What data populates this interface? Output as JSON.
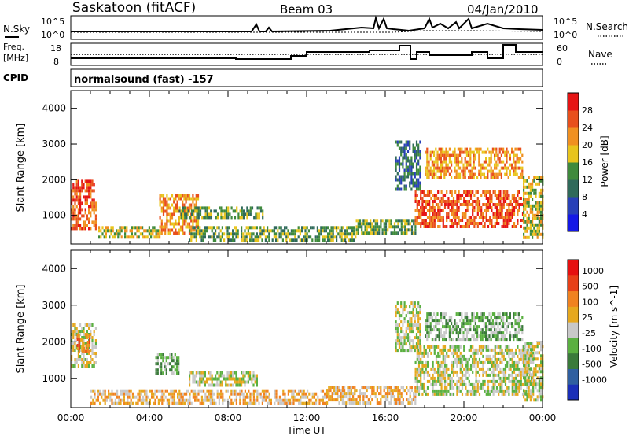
{
  "header": {
    "station": "Saskatoon (fitACF)",
    "beam": "Beam 03",
    "date": "04/Jan/2010"
  },
  "nsky_panel": {
    "label": "N.Sky",
    "yticks": [
      "10^5",
      "10^0"
    ],
    "right_label": "N.Search",
    "right_yticks": [
      "10^5",
      "10^0"
    ]
  },
  "freq_panel": {
    "label_line1": "Freq.",
    "label_line2": "[MHz]",
    "yticks": [
      "18",
      "8"
    ],
    "right_label": "Nave",
    "right_yticks": [
      "60",
      "0"
    ]
  },
  "cpid_panel": {
    "label": "CPID",
    "mode": "normalsound (fast) -157"
  },
  "colors": {
    "power_scale": [
      "#1418e6",
      "#2840b8",
      "#2f6a5a",
      "#3f8a3c",
      "#e8c41c",
      "#f09020",
      "#e8501c",
      "#e61414"
    ],
    "velocity_scale": [
      "#1a2fb8",
      "#2f5fa0",
      "#3a7a3a",
      "#5ab040",
      "#c8c8c8",
      "#e6a81e",
      "#f08220",
      "#e84018",
      "#e61010"
    ]
  },
  "chart_data": [
    {
      "type": "heatmap",
      "title": "Power",
      "ylabel": "Slant Range [km]",
      "ylim": [
        200,
        4500
      ],
      "yticks": [
        "1000",
        "2000",
        "3000",
        "4000"
      ],
      "xticks": [
        "00:00",
        "04:00",
        "08:00",
        "12:00",
        "16:00",
        "20:00",
        "00:00"
      ],
      "colorbar": {
        "label": "Power [dB]",
        "ticks": [
          "28",
          "24",
          "20",
          "16",
          "12",
          "8",
          "4"
        ]
      },
      "regions": [
        {
          "t0": 0.0,
          "t1": 1.3,
          "r0": 600,
          "r1": 2000,
          "level": 6
        },
        {
          "t0": 1.4,
          "t1": 4.5,
          "r0": 350,
          "r1": 700,
          "level": 4
        },
        {
          "t0": 4.5,
          "t1": 6.5,
          "r0": 500,
          "r1": 1600,
          "level": 5
        },
        {
          "t0": 5.5,
          "t1": 9.8,
          "r0": 900,
          "r1": 1250,
          "level": 3
        },
        {
          "t0": 6.0,
          "t1": 14.5,
          "r0": 300,
          "r1": 700,
          "level": 3
        },
        {
          "t0": 14.5,
          "t1": 17.5,
          "r0": 500,
          "r1": 900,
          "level": 3
        },
        {
          "t0": 16.5,
          "t1": 17.8,
          "r0": 1700,
          "r1": 3100,
          "level": 2
        },
        {
          "t0": 17.5,
          "t1": 23.0,
          "r0": 700,
          "r1": 1700,
          "level": 6
        },
        {
          "t0": 18.0,
          "t1": 23.0,
          "r0": 2100,
          "r1": 2900,
          "level": 5
        },
        {
          "t0": 23.0,
          "t1": 24.0,
          "r0": 400,
          "r1": 2100,
          "level": 4
        }
      ]
    },
    {
      "type": "heatmap",
      "title": "Velocity",
      "ylabel": "Slant Range [km]",
      "ylim": [
        200,
        4500
      ],
      "yticks": [
        "1000",
        "2000",
        "3000",
        "4000"
      ],
      "xticks": [
        "00:00",
        "04:00",
        "08:00",
        "12:00",
        "16:00",
        "20:00",
        "00:00"
      ],
      "xlabel": "Time UT",
      "colorbar": {
        "label": "Velocity [m s^-1]",
        "ticks": [
          "1000",
          "500",
          "100",
          "25",
          "-25",
          "-100",
          "-500",
          "-1000"
        ]
      },
      "regions": [
        {
          "t0": 0.0,
          "t1": 1.3,
          "r0": 1300,
          "r1": 2500,
          "level": 4
        },
        {
          "t0": 0.3,
          "t1": 1.0,
          "r0": 1700,
          "r1": 2200,
          "level": 6
        },
        {
          "t0": 1.0,
          "t1": 13.0,
          "r0": 300,
          "r1": 700,
          "level": 5
        },
        {
          "t0": 4.3,
          "t1": 5.5,
          "r0": 1100,
          "r1": 1700,
          "level": 3
        },
        {
          "t0": 6.0,
          "t1": 9.5,
          "r0": 800,
          "r1": 1200,
          "level": 4
        },
        {
          "t0": 13.0,
          "t1": 17.5,
          "r0": 300,
          "r1": 800,
          "level": 5
        },
        {
          "t0": 16.5,
          "t1": 17.8,
          "r0": 1800,
          "r1": 3100,
          "level": 4
        },
        {
          "t0": 17.5,
          "t1": 23.5,
          "r0": 600,
          "r1": 1900,
          "level": 4
        },
        {
          "t0": 18.0,
          "t1": 23.0,
          "r0": 2100,
          "r1": 2800,
          "level": 3
        },
        {
          "t0": 23.0,
          "t1": 24.0,
          "r0": 400,
          "r1": 2000,
          "level": 4
        }
      ]
    }
  ]
}
